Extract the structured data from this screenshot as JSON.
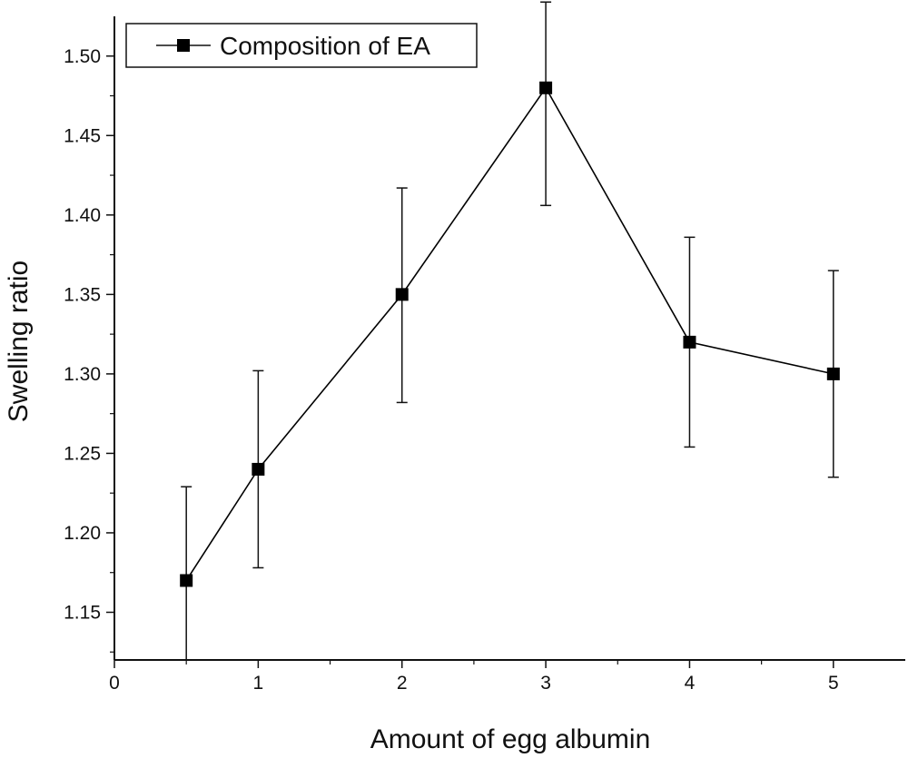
{
  "chart_data": {
    "type": "line",
    "title": "",
    "xlabel": "Amount of egg albumin",
    "ylabel": "Swelling ratio",
    "xlim": [
      0,
      5.5
    ],
    "ylim": [
      1.12,
      1.525
    ],
    "x_ticks": [
      "0",
      "1",
      "2",
      "3",
      "4",
      "5"
    ],
    "y_ticks": [
      "1.15",
      "1.20",
      "1.25",
      "1.30",
      "1.35",
      "1.40",
      "1.45",
      "1.50"
    ],
    "grid": false,
    "legend_position": "top-left",
    "series": [
      {
        "name": "Composition of EA",
        "marker": "square",
        "color": "#000000",
        "x": [
          0.5,
          1,
          2,
          3,
          4,
          5
        ],
        "y": [
          1.17,
          1.24,
          1.35,
          1.48,
          1.32,
          1.3
        ],
        "error_upper": [
          1.229,
          1.302,
          1.417,
          1.534,
          1.386,
          1.365
        ],
        "error_lower": [
          1.12,
          1.178,
          1.282,
          1.406,
          1.254,
          1.235
        ]
      }
    ]
  }
}
